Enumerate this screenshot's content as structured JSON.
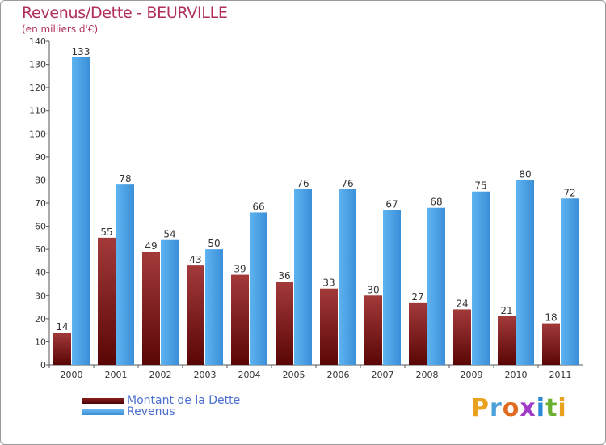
{
  "chart_data": {
    "type": "bar",
    "title": "Revenus/Dette - BEURVILLE",
    "subtitle": "(en milliers d'€)",
    "categories": [
      "2000",
      "2001",
      "2002",
      "2003",
      "2004",
      "2005",
      "2006",
      "2007",
      "2008",
      "2009",
      "2010",
      "2011"
    ],
    "series": [
      {
        "name": "Montant de la Dette",
        "color": "#6e0b0b",
        "values": [
          14,
          55,
          49,
          43,
          39,
          36,
          33,
          30,
          27,
          24,
          21,
          18
        ]
      },
      {
        "name": "Revenus",
        "color": "#4aa3e8",
        "values": [
          133,
          78,
          54,
          50,
          66,
          76,
          76,
          67,
          68,
          75,
          80,
          72
        ]
      }
    ],
    "ylim": [
      0,
      140
    ],
    "yticks": [
      0,
      10,
      20,
      30,
      40,
      50,
      60,
      70,
      80,
      90,
      100,
      110,
      120,
      130,
      140
    ],
    "grid": false,
    "legend_position": "bottom-left"
  },
  "branding": {
    "logo_letters": [
      "P",
      "r",
      "o",
      "x",
      "i",
      "t",
      "i"
    ],
    "logo_colors": [
      "#e8a21e",
      "#4aa0d8",
      "#e06a1e",
      "#a03cc8",
      "#2a8ad8",
      "#6ab02e",
      "#e8a21e"
    ]
  }
}
